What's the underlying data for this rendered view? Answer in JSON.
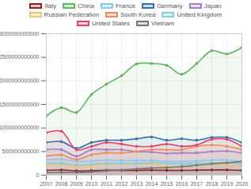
{
  "chart_data": {
    "type": "line",
    "x": [
      2007,
      2008,
      2009,
      2010,
      2011,
      2012,
      2013,
      2014,
      2015,
      2016,
      2017,
      2018,
      2019,
      2020
    ],
    "series": [
      {
        "name": "Italy",
        "color": "#8b2323",
        "values": [
          100000000000,
          110000000000,
          90000000000,
          95000000000,
          105000000000,
          100000000000,
          100000000000,
          105000000000,
          100000000000,
          100000000000,
          105000000000,
          110000000000,
          110000000000,
          100000000000
        ]
      },
      {
        "name": "China",
        "color": "#5cb85c",
        "values": [
          1257000000000,
          1430000000000,
          1330000000000,
          1710000000000,
          1930000000000,
          2110000000000,
          2360000000000,
          2370000000000,
          2330000000000,
          2140000000000,
          2370000000000,
          2640000000000,
          2570000000000,
          2710000000000
        ]
      },
      {
        "name": "France",
        "color": "#8ec6ef",
        "values": [
          320000000000,
          340000000000,
          290000000000,
          300000000000,
          320000000000,
          310000000000,
          310000000000,
          310000000000,
          290000000000,
          290000000000,
          300000000000,
          320000000000,
          320000000000,
          290000000000
        ]
      },
      {
        "name": "Germany",
        "color": "#3c6ea8",
        "values": [
          690000000000,
          710000000000,
          570000000000,
          690000000000,
          740000000000,
          740000000000,
          770000000000,
          810000000000,
          740000000000,
          770000000000,
          740000000000,
          800000000000,
          800000000000,
          690000000000
        ]
      },
      {
        "name": "Japan",
        "color": "#a97cc4",
        "values": [
          540000000000,
          540000000000,
          400000000000,
          540000000000,
          540000000000,
          540000000000,
          500000000000,
          490000000000,
          460000000000,
          470000000000,
          470000000000,
          500000000000,
          510000000000,
          470000000000
        ]
      },
      {
        "name": "Russian Federation",
        "color": "#f5c26b",
        "values": [
          200000000000,
          230000000000,
          170000000000,
          200000000000,
          230000000000,
          240000000000,
          240000000000,
          230000000000,
          190000000000,
          180000000000,
          200000000000,
          220000000000,
          220000000000,
          200000000000
        ]
      },
      {
        "name": "South Korea",
        "color": "#ee8a5a",
        "values": [
          400000000000,
          430000000000,
          330000000000,
          430000000000,
          470000000000,
          470000000000,
          500000000000,
          540000000000,
          540000000000,
          540000000000,
          610000000000,
          640000000000,
          610000000000,
          540000000000
        ]
      },
      {
        "name": "United Kingdom",
        "color": "#7fd2d8",
        "values": [
          250000000000,
          250000000000,
          210000000000,
          230000000000,
          250000000000,
          250000000000,
          250000000000,
          260000000000,
          250000000000,
          240000000000,
          250000000000,
          260000000000,
          260000000000,
          230000000000
        ]
      },
      {
        "name": "United States",
        "color": "#e0446a",
        "values": [
          900000000000,
          930000000000,
          540000000000,
          610000000000,
          690000000000,
          660000000000,
          610000000000,
          610000000000,
          660000000000,
          610000000000,
          640000000000,
          760000000000,
          760000000000,
          610000000000
        ]
      },
      {
        "name": "Vietnam",
        "color": "#777777",
        "values": [
          50000000000,
          60000000000,
          55000000000,
          70000000000,
          90000000000,
          110000000000,
          130000000000,
          150000000000,
          160000000000,
          180000000000,
          210000000000,
          240000000000,
          260000000000,
          290000000000
        ]
      }
    ],
    "xlim": [
      2007,
      2020
    ],
    "xticks": [
      2007,
      2008,
      2009,
      2010,
      2011,
      2012,
      2013,
      2014,
      2015,
      2016,
      2017,
      2018,
      2019,
      2020
    ],
    "ylim": [
      0,
      3000000000000
    ],
    "yticks": [
      0,
      500000000000,
      1000000000000,
      1500000000000,
      2000000000000,
      2500000000000,
      3000000000000
    ],
    "grid": true,
    "legend": "top",
    "marker": "circle"
  }
}
